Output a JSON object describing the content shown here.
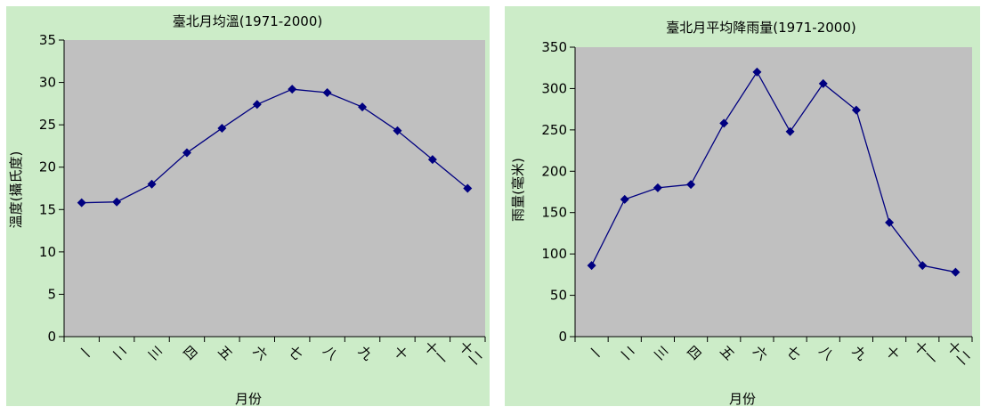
{
  "chart_data": [
    {
      "type": "line",
      "title": "臺北月均溫(1971-2000)",
      "xlabel": "月份",
      "ylabel": "溫度(攝氏度)",
      "categories": [
        "一",
        "二",
        "三",
        "四",
        "五",
        "六",
        "七",
        "八",
        "九",
        "十",
        "十一",
        "十二"
      ],
      "series": [
        {
          "values": [
            15.8,
            15.9,
            18.0,
            21.7,
            24.6,
            27.4,
            29.2,
            28.8,
            27.1,
            24.3,
            20.9,
            17.5
          ]
        }
      ],
      "ylim": [
        0,
        35
      ],
      "yticks": [
        0,
        5,
        10,
        15,
        20,
        25,
        30,
        35
      ],
      "grid": false,
      "legend": "none",
      "colors": {
        "panel": "#ccecc8",
        "plot_area": "#c0c0c0",
        "series": "#000080"
      }
    },
    {
      "type": "line",
      "title": "臺北月平均降雨量(1971-2000)",
      "xlabel": "月份",
      "ylabel": "雨量(毫米)",
      "categories": [
        "一",
        "二",
        "三",
        "四",
        "五",
        "六",
        "七",
        "八",
        "九",
        "十",
        "十一",
        "十二"
      ],
      "series": [
        {
          "values": [
            86,
            166,
            180,
            184,
            258,
            320,
            248,
            306,
            274,
            138,
            86,
            78
          ]
        }
      ],
      "ylim": [
        0,
        350
      ],
      "yticks": [
        0,
        50,
        100,
        150,
        200,
        250,
        300,
        350
      ],
      "grid": false,
      "legend": "none",
      "colors": {
        "panel": "#ccecc8",
        "plot_area": "#c0c0c0",
        "series": "#000080"
      }
    }
  ]
}
